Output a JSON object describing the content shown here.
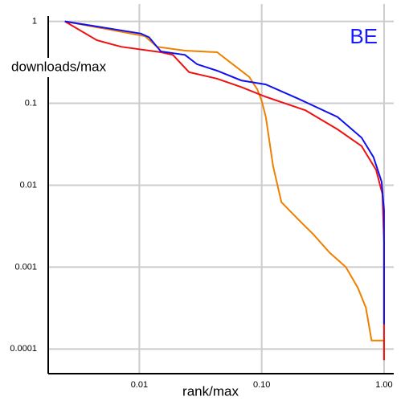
{
  "chart_data": {
    "type": "line",
    "annotation": "BE",
    "annotation_color": "#1a1aff",
    "xlabel": "rank/max",
    "ylabel": "downloads/max",
    "xscale": "log",
    "yscale": "log",
    "grid": true,
    "xlim": [
      0.0018,
      1.2
    ],
    "ylim": [
      5e-05,
      1.3
    ],
    "xticks": [
      0.01,
      {
        "value": 0.1,
        "label": "0.10"
      },
      {
        "value": 1,
        "label": "1.00"
      }
    ],
    "yticks": [
      1,
      0.1,
      0.01,
      0.001,
      0.0001
    ],
    "series": [
      {
        "color": "#ee8000",
        "x": [
          0.00246,
          0.0111,
          0.0139,
          0.0236,
          0.0432,
          0.058,
          0.079,
          0.092,
          0.1,
          0.108,
          0.124,
          0.145,
          0.196,
          0.265,
          0.359,
          0.487,
          0.61,
          0.71,
          0.79,
          0.89,
          1.0,
          1.0
        ],
        "values": [
          1,
          0.66,
          0.49,
          0.44,
          0.42,
          0.3,
          0.21,
          0.148,
          0.107,
          0.068,
          0.017,
          0.0062,
          0.0039,
          0.0025,
          0.0015,
          0.001,
          0.00056,
          0.00032,
          0.000127,
          0.000127,
          0.000127,
          7.3e-05
        ]
      },
      {
        "color": "#ee1111",
        "x": [
          0.00246,
          0.00449,
          0.0071,
          0.015,
          0.0188,
          0.0255,
          0.0432,
          0.068,
          0.108,
          0.228,
          0.417,
          0.655,
          0.86,
          0.97,
          1.0,
          1.0
        ],
        "values": [
          1,
          0.59,
          0.49,
          0.42,
          0.39,
          0.24,
          0.2,
          0.158,
          0.12,
          0.082,
          0.048,
          0.03,
          0.0154,
          0.0078,
          0.002,
          7.3e-05
        ]
      },
      {
        "color": "#1111ee",
        "x": [
          0.00246,
          0.0103,
          0.012,
          0.015,
          0.0236,
          0.0296,
          0.0432,
          0.068,
          0.108,
          0.196,
          0.417,
          0.655,
          0.82,
          0.955,
          1.0,
          1.0
        ],
        "values": [
          1,
          0.71,
          0.64,
          0.43,
          0.39,
          0.3,
          0.25,
          0.19,
          0.17,
          0.115,
          0.068,
          0.038,
          0.022,
          0.011,
          0.0049,
          0.0002
        ]
      }
    ]
  }
}
